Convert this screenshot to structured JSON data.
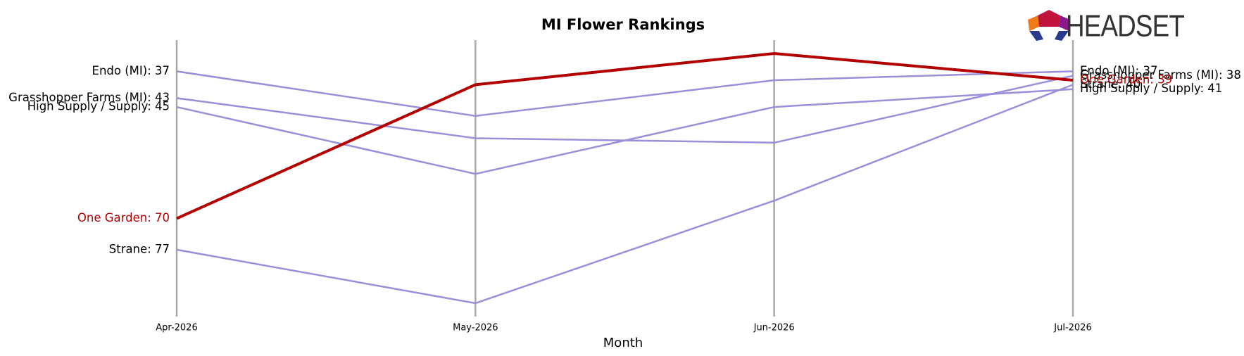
{
  "chart_data": {
    "type": "line",
    "title": "MI Flower Rankings",
    "x_label": "Month",
    "logo": "HEADSET",
    "categories": [
      "Apr-2026",
      "May-2026",
      "Jun-2026",
      "Jul-2026"
    ],
    "ylim": [
      30,
      92
    ],
    "y_inverted": true,
    "series": [
      {
        "name": "Endo (MI)",
        "color": "#9b8fd9",
        "values": [
          37,
          47,
          39,
          37
        ],
        "value_labels": [
          "Endo (MI): 37",
          null,
          null,
          "Endo (MI): 37"
        ]
      },
      {
        "name": "Grasshopper Farms (MI)",
        "color": "#9b8fd9",
        "values": [
          43,
          52,
          53,
          38
        ],
        "value_labels": [
          "Grasshopper Farms (MI): 43",
          null,
          null,
          "Grasshopper Farms (MI): 38"
        ]
      },
      {
        "name": "High Supply / Supply",
        "color": "#9b8fd9",
        "values": [
          45,
          60,
          45,
          41
        ],
        "value_labels": [
          "High Supply / Supply: 45",
          null,
          null,
          "High Supply / Supply: 41"
        ]
      },
      {
        "name": "Strane",
        "color": "#9b8fd9",
        "values": [
          77,
          89,
          66,
          40
        ],
        "value_labels": [
          "Strane: 77",
          null,
          null,
          "Strane: 40"
        ]
      },
      {
        "name": "One Garden",
        "color": "#b30000",
        "values": [
          70,
          40,
          33,
          39
        ],
        "value_labels": [
          "One Garden: 70",
          null,
          null,
          "One Garden: 39"
        ],
        "highlight": true
      }
    ]
  }
}
